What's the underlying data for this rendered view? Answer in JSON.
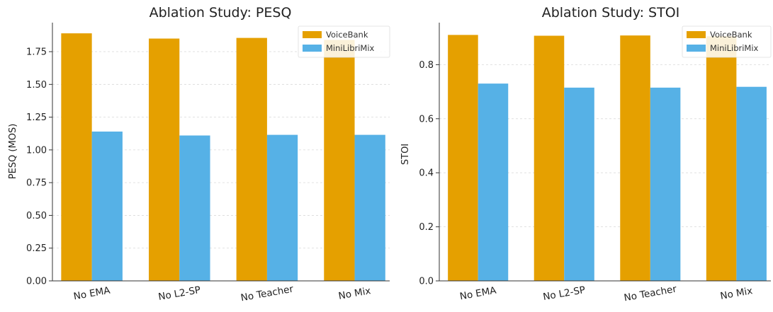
{
  "chart_data": [
    {
      "type": "bar",
      "title": "Ablation Study: PESQ",
      "xlabel": "",
      "ylabel": "PESQ (MOS)",
      "categories": [
        "No EMA",
        "No L2-SP",
        "No Teacher",
        "No Mix"
      ],
      "series": [
        {
          "name": "VoiceBank",
          "color": "#e5a000",
          "values": [
            1.89,
            1.85,
            1.855,
            1.84
          ]
        },
        {
          "name": "MiniLibriMix",
          "color": "#56b1e6",
          "values": [
            1.14,
            1.11,
            1.115,
            1.115
          ]
        }
      ],
      "ylim": [
        0,
        1.95
      ],
      "yticks": [
        0.0,
        0.25,
        0.5,
        0.75,
        1.0,
        1.25,
        1.5,
        1.75
      ],
      "ytick_labels": [
        "0.00",
        "0.25",
        "0.50",
        "0.75",
        "1.00",
        "1.25",
        "1.50",
        "1.75"
      ],
      "grid": true,
      "legend_position": "top-right"
    },
    {
      "type": "bar",
      "title": "Ablation Study: STOI",
      "xlabel": "",
      "ylabel": "STOI",
      "categories": [
        "No EMA",
        "No L2-SP",
        "No Teacher",
        "No Mix"
      ],
      "series": [
        {
          "name": "VoiceBank",
          "color": "#e5a000",
          "values": [
            0.91,
            0.907,
            0.908,
            0.905
          ]
        },
        {
          "name": "MiniLibriMix",
          "color": "#56b1e6",
          "values": [
            0.73,
            0.715,
            0.715,
            0.718
          ]
        }
      ],
      "ylim": [
        0,
        0.945
      ],
      "yticks": [
        0.0,
        0.2,
        0.4,
        0.6,
        0.8
      ],
      "ytick_labels": [
        "0.0",
        "0.2",
        "0.4",
        "0.6",
        "0.8"
      ],
      "grid": true,
      "legend_position": "top-right"
    }
  ]
}
